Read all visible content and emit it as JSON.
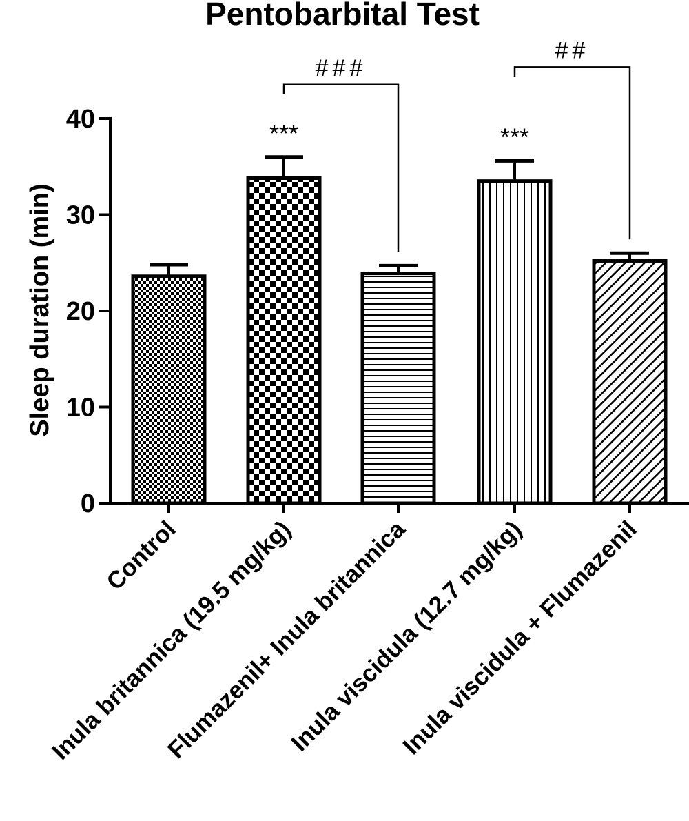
{
  "chart_data": {
    "type": "bar",
    "title": "Pentobarbital Test",
    "ylabel": "Sleep duration (min)",
    "xlabel": "",
    "ylim": [
      0,
      40
    ],
    "yticks": [
      "0",
      "10",
      "20",
      "30",
      "40"
    ],
    "categories": [
      "Control",
      "Inula britannica (19.5 mg/kg)",
      "Flumazenil+ Inula britannica",
      "Inula viscidula (12.7 mg/kg)",
      "Inula viscidula + Flumazenil"
    ],
    "values": [
      23.6,
      33.8,
      23.9,
      33.5,
      25.2
    ],
    "errors": [
      1.2,
      2.2,
      0.8,
      2.1,
      0.8
    ],
    "patterns": [
      "fine-checker",
      "checker",
      "horizontal-lines",
      "vertical-lines",
      "diagonal-lines"
    ],
    "annotations": [
      {
        "bar": 1,
        "text": "***"
      },
      {
        "bar": 3,
        "text": "***"
      }
    ],
    "brackets": [
      {
        "from": 1,
        "to": 2,
        "text": "###"
      },
      {
        "from": 3,
        "to": 4,
        "text": "##"
      }
    ],
    "grid": false,
    "legend": "none"
  }
}
